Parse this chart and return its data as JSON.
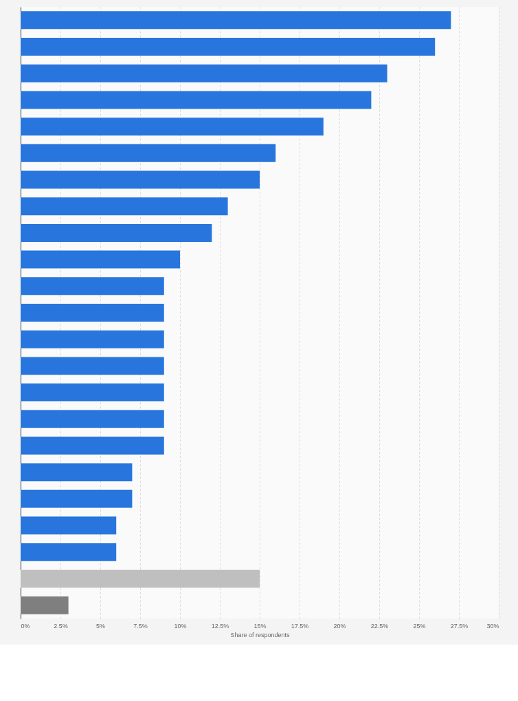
{
  "chart_data": {
    "type": "bar",
    "orientation": "horizontal",
    "xlabel": "Share of respondents",
    "categories": [
      null,
      null,
      null,
      null,
      null,
      null,
      null,
      null,
      null,
      null,
      null,
      null,
      null,
      null,
      null,
      null,
      null,
      null,
      null,
      null,
      null,
      null,
      null
    ],
    "values": [
      27,
      26,
      23,
      22,
      19,
      16,
      15,
      13,
      12,
      10,
      9,
      9,
      9,
      9,
      9,
      9,
      9,
      7,
      7,
      6,
      6,
      15,
      3
    ],
    "colors": [
      "#2876dd",
      "#2876dd",
      "#2876dd",
      "#2876dd",
      "#2876dd",
      "#2876dd",
      "#2876dd",
      "#2876dd",
      "#2876dd",
      "#2876dd",
      "#2876dd",
      "#2876dd",
      "#2876dd",
      "#2876dd",
      "#2876dd",
      "#2876dd",
      "#2876dd",
      "#2876dd",
      "#2876dd",
      "#2876dd",
      "#2876dd",
      "#bfbfbf",
      "#7f7f7f"
    ],
    "xlim": [
      0,
      30
    ],
    "xticks": [
      {
        "value": 0,
        "label": "0%"
      },
      {
        "value": 2.5,
        "label": "2.5%"
      },
      {
        "value": 5,
        "label": "5%"
      },
      {
        "value": 7.5,
        "label": "7.5%"
      },
      {
        "value": 10,
        "label": "10%"
      },
      {
        "value": 12.5,
        "label": "12.5%"
      },
      {
        "value": 15,
        "label": "15%"
      },
      {
        "value": 17.5,
        "label": "17.5%"
      },
      {
        "value": 20,
        "label": "20%"
      },
      {
        "value": 22.5,
        "label": "22.5%"
      },
      {
        "value": 25,
        "label": "25%"
      },
      {
        "value": 27.5,
        "label": "27.5%"
      },
      {
        "value": 30,
        "label": "30%"
      }
    ],
    "grid": "x",
    "tick_labels": "x"
  }
}
